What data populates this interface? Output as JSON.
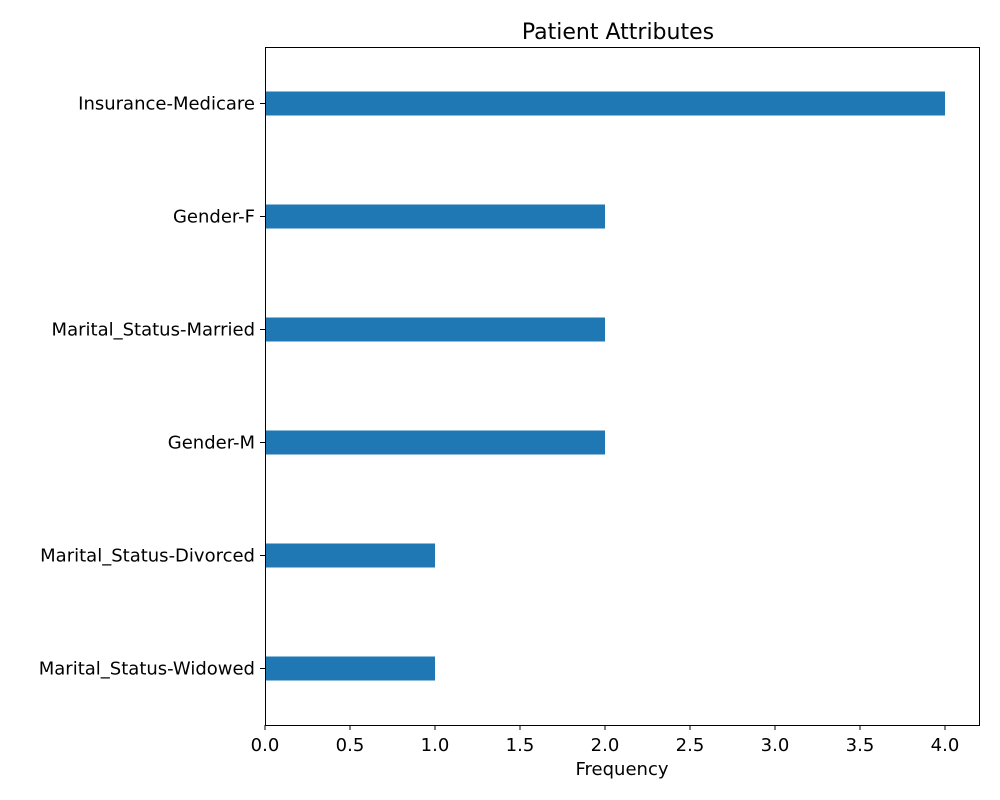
{
  "chart_data": {
    "type": "bar",
    "orientation": "horizontal",
    "title": "Patient Attributes",
    "xlabel": "Frequency",
    "ylabel": "",
    "categories": [
      "Insurance-Medicare",
      "Gender-F",
      "Marital_Status-Married",
      "Gender-M",
      "Marital_Status-Divorced",
      "Marital_Status-Widowed"
    ],
    "values": [
      4,
      2,
      2,
      2,
      1,
      1
    ],
    "xlim": [
      0,
      4.2
    ],
    "xticks": [
      0.0,
      0.5,
      1.0,
      1.5,
      2.0,
      2.5,
      3.0,
      3.5,
      4.0
    ],
    "xtick_labels": [
      "0.0",
      "0.5",
      "1.0",
      "1.5",
      "2.0",
      "2.5",
      "3.0",
      "3.5",
      "4.0"
    ],
    "grid": false,
    "legend": "none",
    "bar_color": "#1f77b4"
  }
}
